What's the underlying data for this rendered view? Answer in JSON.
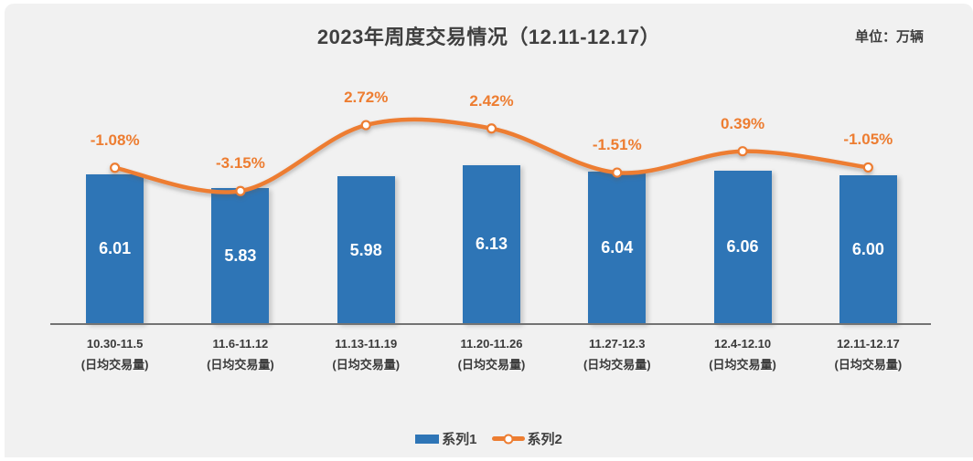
{
  "chart": {
    "title": "2023年周度交易情况（12.11-12.17）",
    "unit_label": "单位：万辆",
    "colors": {
      "bar": "#2E75B6",
      "line": "#ED7D31",
      "bar_value_text": "#FFFFFF",
      "percent_label_text": "#ED7D31",
      "axis_line": "#737373",
      "title_text": "#3F3F3F",
      "background": "#F1F1F1",
      "frame": "#FFFFFF"
    }
  },
  "chart_data": {
    "type": "bar",
    "subtype": "bar-line-combo",
    "title": "2023年周度交易情况（12.11-12.17）",
    "unit": "万辆",
    "categories": [
      "10.30-11.5",
      "11.6-11.12",
      "11.13-11.19",
      "11.20-11.26",
      "11.27-12.3",
      "12.4-12.10",
      "12.11-12.17"
    ],
    "category_sublabel": "(日均交易量)",
    "series": [
      {
        "name": "系列1",
        "type": "bar",
        "values": [
          6.01,
          5.83,
          5.98,
          6.13,
          6.04,
          6.06,
          6.0
        ],
        "labels": [
          "6.01",
          "5.83",
          "5.98",
          "6.13",
          "6.04",
          "6.06",
          "6.00"
        ]
      },
      {
        "name": "系列2",
        "type": "line",
        "values_pct": [
          -1.08,
          -3.15,
          2.72,
          2.42,
          -1.51,
          0.39,
          -1.05
        ],
        "labels": [
          "-1.08%",
          "-3.15%",
          "2.72%",
          "2.42%",
          "-1.51%",
          "0.39%",
          "-1.05%"
        ]
      }
    ],
    "ylim": [
      4.05,
      6.4
    ],
    "y2lim_pct": [
      -4,
      4
    ],
    "grid": false,
    "legend_position": "bottom",
    "value_axis_visible": false
  },
  "legend": {
    "series1": "系列1",
    "series2": "系列2"
  }
}
